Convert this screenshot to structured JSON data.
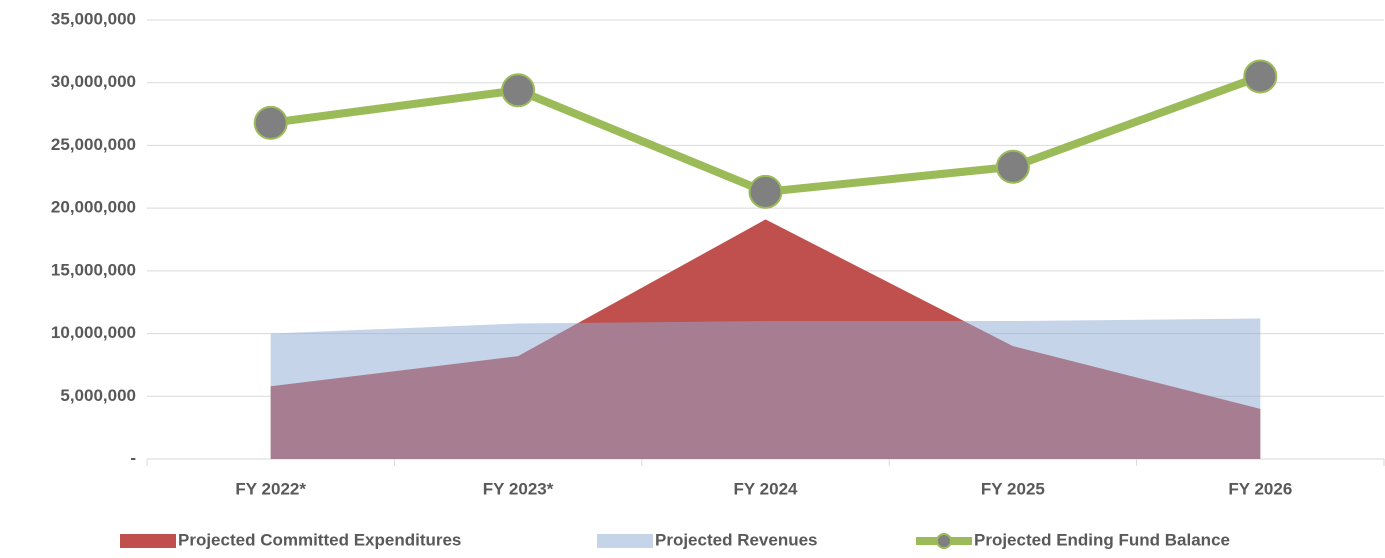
{
  "chart_data": {
    "type": "area",
    "categories": [
      "FY 2022*",
      "FY 2023*",
      "FY 2024",
      "FY 2025",
      "FY 2026"
    ],
    "series": [
      {
        "name": "Projected Committed Expenditures",
        "type": "area",
        "color": "#c0504d",
        "values": [
          5800000,
          8200000,
          19100000,
          9000000,
          4000000
        ]
      },
      {
        "name": "Projected Revenues",
        "type": "area",
        "color": "#8da9d6",
        "values": [
          10000000,
          10800000,
          11000000,
          11000000,
          11200000
        ]
      },
      {
        "name": "Projected Ending Fund Balance",
        "type": "line",
        "color": "#9bbb59",
        "marker_color": "#808080",
        "values": [
          26800000,
          29400000,
          21300000,
          23300000,
          30500000
        ]
      }
    ],
    "ylim": [
      0,
      35000000
    ],
    "yticks": [
      {
        "value": 0,
        "label": "-"
      },
      {
        "value": 5000000,
        "label": "5,000,000"
      },
      {
        "value": 10000000,
        "label": "10,000,000"
      },
      {
        "value": 15000000,
        "label": "15,000,000"
      },
      {
        "value": 20000000,
        "label": "20,000,000"
      },
      {
        "value": 25000000,
        "label": "25,000,000"
      },
      {
        "value": 30000000,
        "label": "30,000,000"
      },
      {
        "value": 35000000,
        "label": "35,000,000"
      }
    ],
    "grid": true,
    "legend": "bottom"
  }
}
